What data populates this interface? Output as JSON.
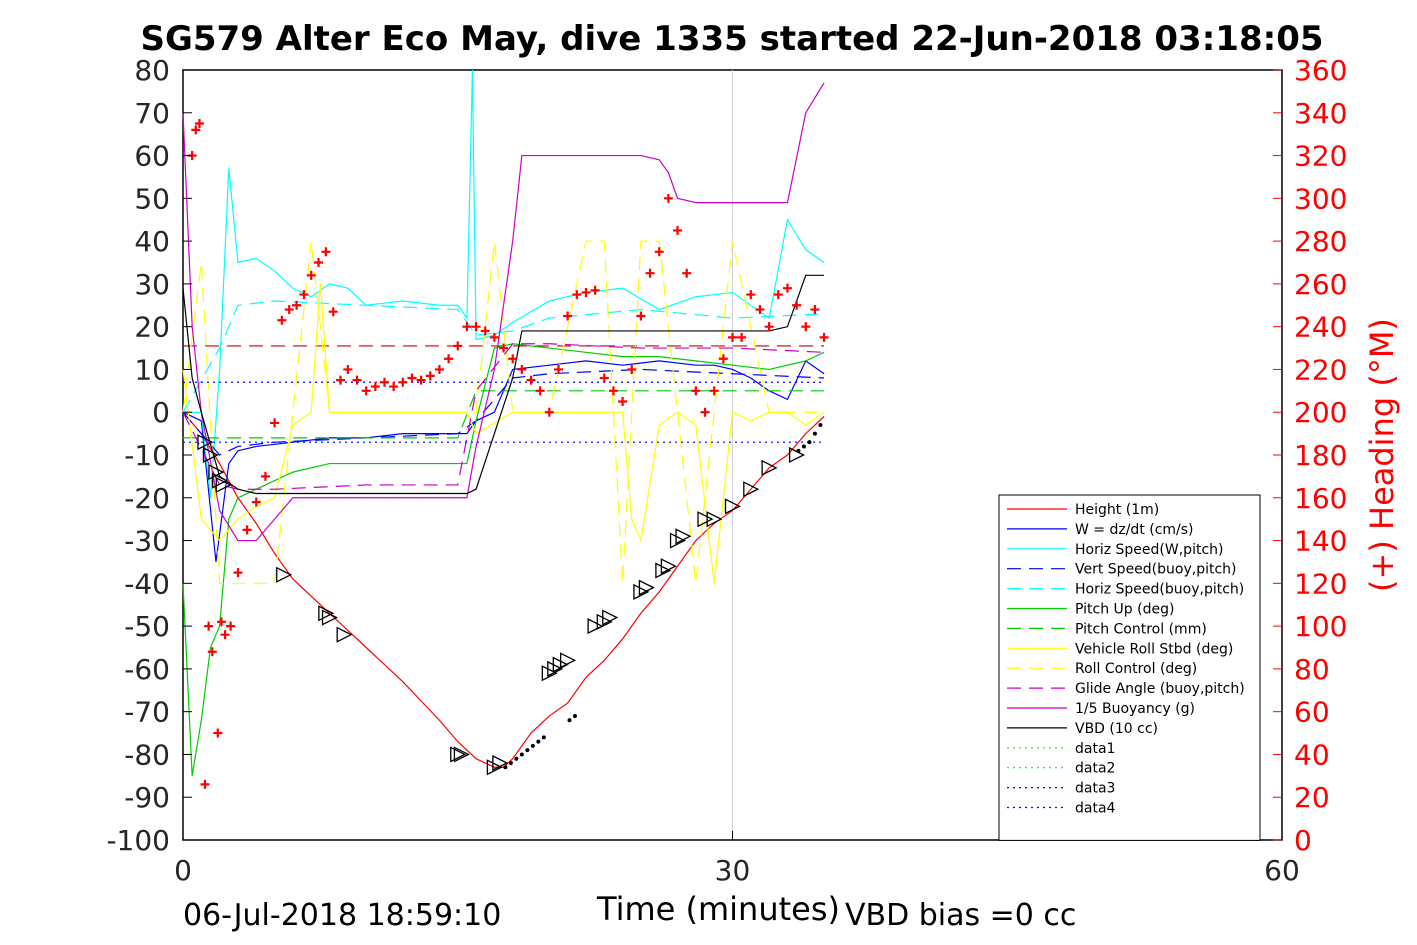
{
  "chart_data": {
    "type": "line",
    "title": "SG579 Alter Eco May, dive 1335 started 22-Jun-2018 03:18:05",
    "xlabel": "Time (minutes)",
    "ylabel": "",
    "y2label": "(+) Heading (°M)",
    "xlim": [
      0,
      60
    ],
    "ylim": [
      -100,
      80
    ],
    "y2lim": [
      0,
      360
    ],
    "xticks": [
      "0",
      "30",
      "60"
    ],
    "yticks": [
      "80",
      "70",
      "60",
      "50",
      "40",
      "30",
      "20",
      "10",
      "0",
      "-10",
      "-20",
      "-30",
      "-40",
      "-50",
      "-60",
      "-70",
      "-80",
      "-90",
      "-100"
    ],
    "y2ticks": [
      "360",
      "340",
      "320",
      "300",
      "280",
      "260",
      "240",
      "220",
      "200",
      "180",
      "160",
      "140",
      "120",
      "100",
      "80",
      "60",
      "40",
      "20",
      "0"
    ],
    "grid": "x=30 only",
    "legend_position": "lower-right",
    "colors": {
      "height": "#ff0000",
      "w": "#0000ff",
      "horiz_w": "#00ffff",
      "vert_buoy": "#0000ff",
      "horiz_buoy": "#00ffff",
      "pitch_up": "#00cc00",
      "pitch_ctrl": "#00cc00",
      "roll": "#ffff00",
      "roll_ctrl": "#ffff00",
      "glide": "#cc00cc",
      "buoy": "#cc00cc",
      "vbd": "#000000",
      "data1": "#00ff00",
      "data2": "#00ff00",
      "data3": "#0000ff",
      "data4": "#0000ff",
      "heading_marker": "#ff0000"
    },
    "series": [
      {
        "name": "Height (1m)",
        "style": "solid",
        "color": "#ff0000",
        "x": [
          0,
          1,
          2,
          3,
          4,
          5,
          6,
          8,
          10,
          12,
          14,
          15,
          16,
          17,
          17.5,
          18,
          19,
          20,
          21,
          22,
          23,
          24,
          25,
          26,
          27,
          28,
          29,
          30,
          31,
          32,
          33,
          34,
          35
        ],
        "y": [
          0,
          -5,
          -12,
          -20,
          -26,
          -33,
          -39,
          -47,
          -55,
          -63,
          -72,
          -77,
          -81,
          -83,
          -83,
          -81,
          -75,
          -71,
          -68,
          -62,
          -58,
          -53,
          -47,
          -42,
          -36,
          -30,
          -26,
          -23,
          -18,
          -13,
          -10,
          -5,
          -1
        ]
      },
      {
        "name": "W = dz/dt (cm/s)",
        "style": "solid",
        "color": "#0000ff",
        "x": [
          0,
          1,
          1.8,
          2.5,
          3,
          4,
          6,
          8,
          10,
          12,
          14,
          15.5,
          16,
          17,
          18,
          20,
          22,
          24,
          26,
          28,
          29,
          30,
          31,
          32,
          33,
          34,
          35
        ],
        "y": [
          0,
          -2,
          -35,
          -12,
          -9,
          -8,
          -7,
          -6,
          -6,
          -5,
          -5,
          -5,
          -2,
          0,
          10,
          11,
          12,
          11,
          12,
          11,
          11,
          10,
          8,
          5,
          3,
          12,
          9
        ]
      },
      {
        "name": "Horiz Speed(W,pitch)",
        "style": "solid",
        "color": "#00ffff",
        "x": [
          0,
          1,
          1.5,
          2,
          2.5,
          3,
          4,
          5,
          6,
          7,
          8,
          9,
          10,
          12,
          14,
          15,
          15.5,
          15.8,
          16,
          17,
          18,
          20,
          22,
          24,
          26,
          28,
          30,
          32,
          33,
          34,
          35
        ],
        "y": [
          0,
          0,
          -20,
          10,
          57,
          35,
          36,
          33,
          29,
          27,
          30,
          29,
          25,
          26,
          25,
          25,
          22,
          80,
          17,
          18,
          21,
          26,
          28,
          29,
          24,
          27,
          28,
          22,
          45,
          38,
          35
        ]
      },
      {
        "name": "Vert Speed(buoy,pitch)",
        "style": "dashed",
        "color": "#0000ff",
        "x": [
          0,
          2,
          3,
          5,
          10,
          15,
          16,
          18,
          20,
          25,
          30,
          35
        ],
        "y": [
          0,
          -10,
          -8,
          -7,
          -6,
          -5,
          -2,
          8,
          9,
          10,
          9,
          8
        ]
      },
      {
        "name": "Horiz Speed(buoy,pitch)",
        "style": "dashed",
        "color": "#00ffff",
        "x": [
          0,
          2,
          3,
          5,
          10,
          15,
          16,
          18,
          20,
          25,
          30,
          35
        ],
        "y": [
          0,
          15,
          25,
          26,
          25,
          24,
          18,
          19,
          22,
          24,
          22,
          23
        ]
      },
      {
        "name": "Pitch Up (deg)",
        "style": "solid",
        "color": "#00cc00",
        "x": [
          0,
          0.5,
          1,
          1.5,
          2,
          2.5,
          3,
          4,
          6,
          8,
          10,
          12,
          14,
          15.5,
          16,
          17,
          18,
          20,
          22,
          24,
          26,
          28,
          30,
          32,
          34,
          35
        ],
        "y": [
          -40,
          -85,
          -72,
          -55,
          -50,
          -25,
          -20,
          -18,
          -14,
          -12,
          -12,
          -12,
          -12,
          -12,
          -2,
          15,
          16,
          15,
          14,
          13,
          13,
          12,
          11,
          10,
          12,
          14
        ]
      },
      {
        "name": "Pitch Control (mm)",
        "style": "dashed",
        "color": "#00cc00",
        "x": [
          0,
          2,
          3,
          5,
          10,
          15,
          16,
          17,
          20,
          25,
          30,
          35
        ],
        "y": [
          -6,
          -6,
          -6,
          -6,
          -6,
          -6,
          5,
          5,
          5,
          5,
          5,
          5
        ]
      },
      {
        "name": "Vehicle Roll Stbd (deg)",
        "style": "solid",
        "color": "#ffff00",
        "x": [
          0,
          1,
          2,
          3,
          4,
          5,
          6,
          7,
          7.5,
          8,
          9,
          10,
          15,
          15.5,
          16,
          18,
          20,
          22,
          24,
          24.5,
          25,
          26,
          27,
          28,
          29,
          30,
          31,
          32,
          33,
          34,
          35
        ],
        "y": [
          10,
          -25,
          -30,
          -25,
          -22,
          -20,
          -3,
          0,
          30,
          0,
          0,
          0,
          0,
          0,
          -5,
          0,
          0,
          0,
          0,
          -25,
          -30,
          -3,
          0,
          -3,
          -40,
          0,
          -2,
          0,
          0,
          -3,
          0
        ]
      },
      {
        "name": "Roll Control (deg)",
        "style": "dashed",
        "color": "#ffff00",
        "x": [
          0,
          1,
          2,
          3,
          5,
          6,
          7,
          8,
          9,
          10,
          15,
          16,
          17,
          18,
          20,
          22,
          23,
          24,
          25,
          26,
          28,
          30,
          32,
          34,
          35
        ],
        "y": [
          0,
          35,
          -40,
          -40,
          -40,
          0,
          40,
          0,
          0,
          0,
          0,
          0,
          40,
          0,
          0,
          40,
          40,
          -40,
          40,
          40,
          -40,
          40,
          0,
          0,
          0
        ]
      },
      {
        "name": "Glide Angle (buoy,pitch)",
        "style": "dashed",
        "color": "#cc00cc",
        "x": [
          0,
          2,
          3,
          5,
          10,
          15,
          16,
          18,
          20,
          25,
          30,
          35
        ],
        "y": [
          0,
          -17,
          -18,
          -18,
          -17,
          -17,
          5,
          16,
          16,
          15,
          15,
          14
        ]
      },
      {
        "name": "1/5 Buoyancy (g)",
        "style": "solid",
        "color": "#cc00cc",
        "x": [
          0,
          0.5,
          1,
          2,
          3,
          4,
          5,
          6,
          8,
          10,
          12,
          14,
          15.5,
          16,
          17,
          18,
          18.5,
          20,
          22,
          24,
          25,
          26,
          26.5,
          27,
          28,
          30,
          32,
          33,
          34,
          35
        ],
        "y": [
          70,
          20,
          0,
          -23,
          -30,
          -30,
          -25,
          -20,
          -20,
          -20,
          -20,
          -20,
          -20,
          -8,
          10,
          40,
          60,
          60,
          60,
          60,
          60,
          59,
          56,
          50,
          49,
          49,
          49,
          49,
          70,
          77
        ]
      },
      {
        "name": "VBD (10 cc)",
        "style": "solid",
        "color": "#000000",
        "x": [
          0,
          0.5,
          1,
          2,
          3,
          4,
          5,
          6,
          8,
          10,
          12,
          14,
          15.5,
          16,
          18,
          18.5,
          20,
          22,
          24,
          26,
          28,
          30,
          32,
          33,
          34,
          35
        ],
        "y": [
          29,
          8,
          0,
          -15,
          -18,
          -19,
          -19,
          -19,
          -19,
          -19,
          -19,
          -19,
          -19,
          -18,
          8,
          19,
          19,
          19,
          19,
          19,
          19,
          19,
          19,
          20,
          32,
          32
        ]
      },
      {
        "name": "data1",
        "style": "dotted",
        "color": "#00ff00",
        "x": [],
        "y": []
      },
      {
        "name": "data2",
        "style": "dotted",
        "color": "#00ff00",
        "x": [],
        "y": []
      },
      {
        "name": "data3",
        "style": "dotted",
        "color": "#0000ff",
        "x": [
          0,
          35
        ],
        "y": [
          7,
          7
        ]
      },
      {
        "name": "data4",
        "style": "dotted",
        "color": "#0000ff",
        "x": [
          0,
          35
        ],
        "y": [
          -7,
          -7
        ]
      }
    ],
    "reference_lines": [
      {
        "color": "#cc0000",
        "style": "dashed",
        "x": [
          0,
          35
        ],
        "y": [
          15.5,
          15.5
        ]
      }
    ],
    "heading_markers": {
      "x": [
        0.5,
        0.7,
        0.9,
        1.2,
        1.4,
        1.6,
        1.9,
        2.1,
        2.3,
        2.6,
        3,
        3.5,
        4,
        4.5,
        5,
        5.4,
        5.8,
        6.2,
        6.6,
        7,
        7.4,
        7.8,
        8.2,
        8.6,
        9,
        9.5,
        10,
        10.5,
        11,
        11.5,
        12,
        12.5,
        13,
        13.5,
        14,
        14.5,
        15,
        15.5,
        16,
        16.5,
        17,
        17.5,
        18,
        18.5,
        19,
        19.5,
        20,
        20.5,
        21,
        21.5,
        22,
        22.5,
        23,
        23.5,
        24,
        24.5,
        25,
        25.5,
        26,
        26.5,
        27,
        27.5,
        28,
        28.5,
        29,
        29.5,
        30,
        30.5,
        31,
        31.5,
        32,
        32.5,
        33,
        33.5,
        34,
        34.5,
        35
      ],
      "y": [
        320,
        332,
        335,
        26,
        100,
        88,
        50,
        102,
        96,
        100,
        125,
        145,
        158,
        170,
        195,
        243,
        248,
        250,
        255,
        264,
        270,
        275,
        247,
        215,
        220,
        215,
        210,
        212,
        214,
        212,
        214,
        216,
        215,
        217,
        220,
        225,
        231,
        240,
        240,
        238,
        235,
        230,
        225,
        220,
        215,
        210,
        200,
        220,
        245,
        255,
        256,
        257,
        216,
        210,
        205,
        220,
        245,
        265,
        275,
        300,
        285,
        265,
        210,
        200,
        210,
        225,
        235,
        235,
        255,
        248,
        240,
        255,
        258,
        250,
        240,
        248,
        235
      ]
    },
    "triangle_markers": {
      "x": [
        1.2,
        1.5,
        1.8,
        2,
        2.2,
        5.5,
        7.8,
        8,
        8.8,
        15,
        15.2,
        17,
        17.3,
        20,
        20.3,
        20.6,
        21,
        22.5,
        23,
        23.3,
        25,
        25.3,
        26.2,
        26.5,
        27,
        27.3,
        28.5,
        29,
        30,
        31,
        32,
        33.5
      ],
      "y": [
        -7,
        -10,
        -14,
        -16,
        -17,
        -38,
        -47,
        -48,
        -52,
        -80,
        -80,
        -83,
        -82,
        -61,
        -60,
        -59,
        -58,
        -50,
        -49,
        -48,
        -42,
        -41,
        -37,
        -36,
        -30,
        -29,
        -25,
        -25,
        -22,
        -18,
        -13,
        -10
      ]
    },
    "dot_markers": {
      "x": [
        17.6,
        17.9,
        18.2,
        18.5,
        18.8,
        19.1,
        19.4,
        19.7,
        21.1,
        21.4,
        33.6,
        33.9,
        34.2,
        34.5,
        34.8
      ],
      "y": [
        -83,
        -82,
        -81,
        -80,
        -79,
        -78,
        -77,
        -76,
        -72,
        -71,
        -9,
        -8,
        -7,
        -5,
        -3
      ]
    }
  },
  "footer": {
    "timestamp": "06-Jul-2018 18:59:10",
    "vbd_bias": "VBD bias =0 cc"
  }
}
